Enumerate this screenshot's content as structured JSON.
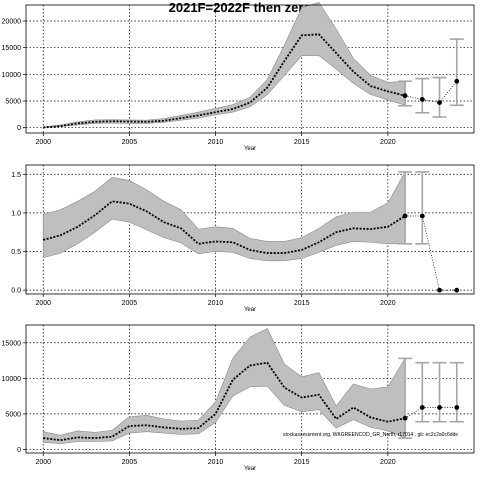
{
  "title": "2021F=2022F then zero",
  "footnote": "stockassessment.org, WKGREENCOD_GR_North, r17014 , git: ec2c2a0c6dde",
  "chart_data": [
    {
      "type": "line",
      "name": "panel-1",
      "xlabel": "Year",
      "ylabel": "",
      "xlim": [
        1999,
        2025
      ],
      "ylim": [
        -1000,
        23000
      ],
      "xticks": [
        2000,
        2005,
        2010,
        2015,
        2020
      ],
      "yticks": [
        0,
        5000,
        10000,
        15000,
        20000
      ],
      "ytick_labels": [
        "0",
        "5000",
        "10000",
        "15000",
        "20000"
      ],
      "grid": true,
      "x": [
        2000,
        2001,
        2002,
        2003,
        2004,
        2005,
        2006,
        2007,
        2008,
        2009,
        2010,
        2011,
        2012,
        2013,
        2014,
        2015,
        2016,
        2017,
        2018,
        2019,
        2020,
        2021
      ],
      "estimate": [
        50,
        300,
        800,
        1100,
        1200,
        1150,
        1100,
        1300,
        1800,
        2300,
        2900,
        3500,
        4700,
        7500,
        12500,
        17300,
        17500,
        14000,
        10500,
        7800,
        6800,
        6000
      ],
      "lower": [
        0,
        200,
        500,
        800,
        850,
        800,
        800,
        1000,
        1400,
        1800,
        2400,
        2900,
        3900,
        6200,
        9800,
        13500,
        13500,
        11000,
        8300,
        6200,
        5200,
        4200
      ],
      "upper": [
        100,
        500,
        1100,
        1450,
        1500,
        1450,
        1400,
        1700,
        2300,
        2900,
        3600,
        4300,
        5700,
        9000,
        15500,
        22500,
        23500,
        18500,
        13000,
        9800,
        8500,
        8700
      ],
      "forecast": [
        {
          "x": 2021,
          "y": 6000,
          "lo": 4100,
          "hi": 8700
        },
        {
          "x": 2022,
          "y": 5300,
          "lo": 2800,
          "hi": 9200
        },
        {
          "x": 2023,
          "y": 4700,
          "lo": 2000,
          "hi": 9400
        },
        {
          "x": 2024,
          "y": 8700,
          "lo": 4200,
          "hi": 16600
        }
      ]
    },
    {
      "type": "line",
      "name": "panel-2",
      "xlabel": "Year",
      "ylabel": "",
      "xlim": [
        1999,
        2025
      ],
      "ylim": [
        -0.05,
        1.62
      ],
      "xticks": [
        2000,
        2005,
        2010,
        2015,
        2020
      ],
      "yticks": [
        0,
        0.5,
        1.0,
        1.5
      ],
      "ytick_labels": [
        "0.0",
        "0.5",
        "1.0",
        "1.5"
      ],
      "grid": true,
      "x": [
        2000,
        2001,
        2002,
        2003,
        2004,
        2005,
        2006,
        2007,
        2008,
        2009,
        2010,
        2011,
        2012,
        2013,
        2014,
        2015,
        2016,
        2017,
        2018,
        2019,
        2020,
        2021
      ],
      "estimate": [
        0.65,
        0.71,
        0.82,
        0.97,
        1.15,
        1.12,
        1.02,
        0.88,
        0.8,
        0.6,
        0.63,
        0.62,
        0.52,
        0.48,
        0.48,
        0.52,
        0.62,
        0.75,
        0.8,
        0.79,
        0.82,
        0.96
      ],
      "lower": [
        0.42,
        0.48,
        0.6,
        0.75,
        0.92,
        0.88,
        0.78,
        0.68,
        0.61,
        0.47,
        0.5,
        0.49,
        0.41,
        0.38,
        0.38,
        0.41,
        0.49,
        0.58,
        0.63,
        0.62,
        0.6,
        0.6
      ],
      "upper": [
        0.98,
        1.04,
        1.15,
        1.28,
        1.46,
        1.42,
        1.3,
        1.15,
        1.04,
        0.79,
        0.82,
        0.8,
        0.67,
        0.63,
        0.63,
        0.68,
        0.8,
        0.95,
        1.01,
        1.01,
        1.13,
        1.53
      ],
      "forecast": [
        {
          "x": 2021,
          "y": 0.96,
          "lo": 0.6,
          "hi": 1.53
        },
        {
          "x": 2022,
          "y": 0.96,
          "lo": 0.6,
          "hi": 1.53
        },
        {
          "x": 2023,
          "y": 0,
          "lo": 0,
          "hi": 0
        },
        {
          "x": 2024,
          "y": 0,
          "lo": 0,
          "hi": 0
        }
      ]
    },
    {
      "type": "line",
      "name": "panel-3",
      "xlabel": "Year",
      "ylabel": "",
      "xlim": [
        1999,
        2025
      ],
      "ylim": [
        -500,
        17500
      ],
      "xticks": [
        2000,
        2005,
        2010,
        2015,
        2020
      ],
      "yticks": [
        0,
        5000,
        10000,
        15000
      ],
      "ytick_labels": [
        "0",
        "5000",
        "10000",
        "15000"
      ],
      "grid": true,
      "x": [
        2000,
        2001,
        2002,
        2003,
        2004,
        2005,
        2006,
        2007,
        2008,
        2009,
        2010,
        2011,
        2012,
        2013,
        2014,
        2015,
        2016,
        2017,
        2018,
        2019,
        2020,
        2021
      ],
      "estimate": [
        1600,
        1300,
        1700,
        1600,
        1800,
        3300,
        3400,
        3100,
        2900,
        3000,
        5000,
        9800,
        11800,
        12200,
        8700,
        7300,
        7700,
        4300,
        5900,
        4500,
        3900,
        4400
      ],
      "lower": [
        1000,
        800,
        1100,
        1100,
        1200,
        2300,
        2500,
        2300,
        2100,
        2200,
        3800,
        7500,
        8800,
        8900,
        6200,
        5300,
        5600,
        3000,
        4200,
        3100,
        2600,
        1600
      ],
      "upper": [
        2500,
        2000,
        2600,
        2400,
        2700,
        4600,
        4800,
        4300,
        4000,
        4100,
        6700,
        12800,
        15800,
        17000,
        12000,
        10200,
        10800,
        6100,
        9200,
        8500,
        8800,
        12800
      ],
      "forecast": [
        {
          "x": 2021,
          "y": 4400,
          "lo": 1600,
          "hi": 12800
        },
        {
          "x": 2022,
          "y": 5900,
          "lo": 3900,
          "hi": 12200
        },
        {
          "x": 2023,
          "y": 5900,
          "lo": 3900,
          "hi": 12200
        },
        {
          "x": 2024,
          "y": 5900,
          "lo": 3900,
          "hi": 12200
        }
      ]
    }
  ]
}
